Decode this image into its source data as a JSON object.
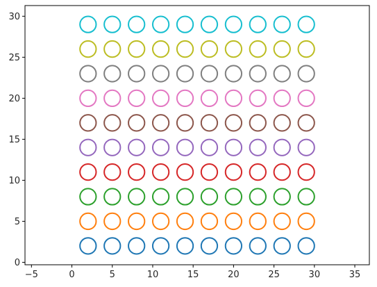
{
  "chart_data": {
    "type": "scatter",
    "title": "",
    "xlabel": "",
    "ylabel": "",
    "xlim": [
      -5.8,
      36.8
    ],
    "ylim": [
      -0.3,
      31.3
    ],
    "xticks": [
      -5,
      0,
      5,
      10,
      15,
      20,
      25,
      30,
      35
    ],
    "xtick_labels": [
      "−5",
      "0",
      "5",
      "10",
      "15",
      "20",
      "25",
      "30",
      "35"
    ],
    "yticks": [
      0,
      5,
      10,
      15,
      20,
      25,
      30
    ],
    "ytick_labels": [
      "0",
      "5",
      "10",
      "15",
      "20",
      "25",
      "30"
    ],
    "grid": false,
    "marker": "open-circle",
    "circle_radius": 1,
    "series": [
      {
        "color": "#1f77b4",
        "x": [
          2,
          5,
          8,
          11,
          14,
          17,
          20,
          23,
          26,
          29
        ],
        "y": [
          2,
          2,
          2,
          2,
          2,
          2,
          2,
          2,
          2,
          2
        ]
      },
      {
        "color": "#ff7f0e",
        "x": [
          2,
          5,
          8,
          11,
          14,
          17,
          20,
          23,
          26,
          29
        ],
        "y": [
          5,
          5,
          5,
          5,
          5,
          5,
          5,
          5,
          5,
          5
        ]
      },
      {
        "color": "#2ca02c",
        "x": [
          2,
          5,
          8,
          11,
          14,
          17,
          20,
          23,
          26,
          29
        ],
        "y": [
          8,
          8,
          8,
          8,
          8,
          8,
          8,
          8,
          8,
          8
        ]
      },
      {
        "color": "#d62728",
        "x": [
          2,
          5,
          8,
          11,
          14,
          17,
          20,
          23,
          26,
          29
        ],
        "y": [
          11,
          11,
          11,
          11,
          11,
          11,
          11,
          11,
          11,
          11
        ]
      },
      {
        "color": "#9467bd",
        "x": [
          2,
          5,
          8,
          11,
          14,
          17,
          20,
          23,
          26,
          29
        ],
        "y": [
          14,
          14,
          14,
          14,
          14,
          14,
          14,
          14,
          14,
          14
        ]
      },
      {
        "color": "#8c564b",
        "x": [
          2,
          5,
          8,
          11,
          14,
          17,
          20,
          23,
          26,
          29
        ],
        "y": [
          17,
          17,
          17,
          17,
          17,
          17,
          17,
          17,
          17,
          17
        ]
      },
      {
        "color": "#e377c2",
        "x": [
          2,
          5,
          8,
          11,
          14,
          17,
          20,
          23,
          26,
          29
        ],
        "y": [
          20,
          20,
          20,
          20,
          20,
          20,
          20,
          20,
          20,
          20
        ]
      },
      {
        "color": "#7f7f7f",
        "x": [
          2,
          5,
          8,
          11,
          14,
          17,
          20,
          23,
          26,
          29
        ],
        "y": [
          23,
          23,
          23,
          23,
          23,
          23,
          23,
          23,
          23,
          23
        ]
      },
      {
        "color": "#bcbd22",
        "x": [
          2,
          5,
          8,
          11,
          14,
          17,
          20,
          23,
          26,
          29
        ],
        "y": [
          26,
          26,
          26,
          26,
          26,
          26,
          26,
          26,
          26,
          26
        ]
      },
      {
        "color": "#17becf",
        "x": [
          2,
          5,
          8,
          11,
          14,
          17,
          20,
          23,
          26,
          29
        ],
        "y": [
          29,
          29,
          29,
          29,
          29,
          29,
          29,
          29,
          29,
          29
        ]
      }
    ]
  }
}
